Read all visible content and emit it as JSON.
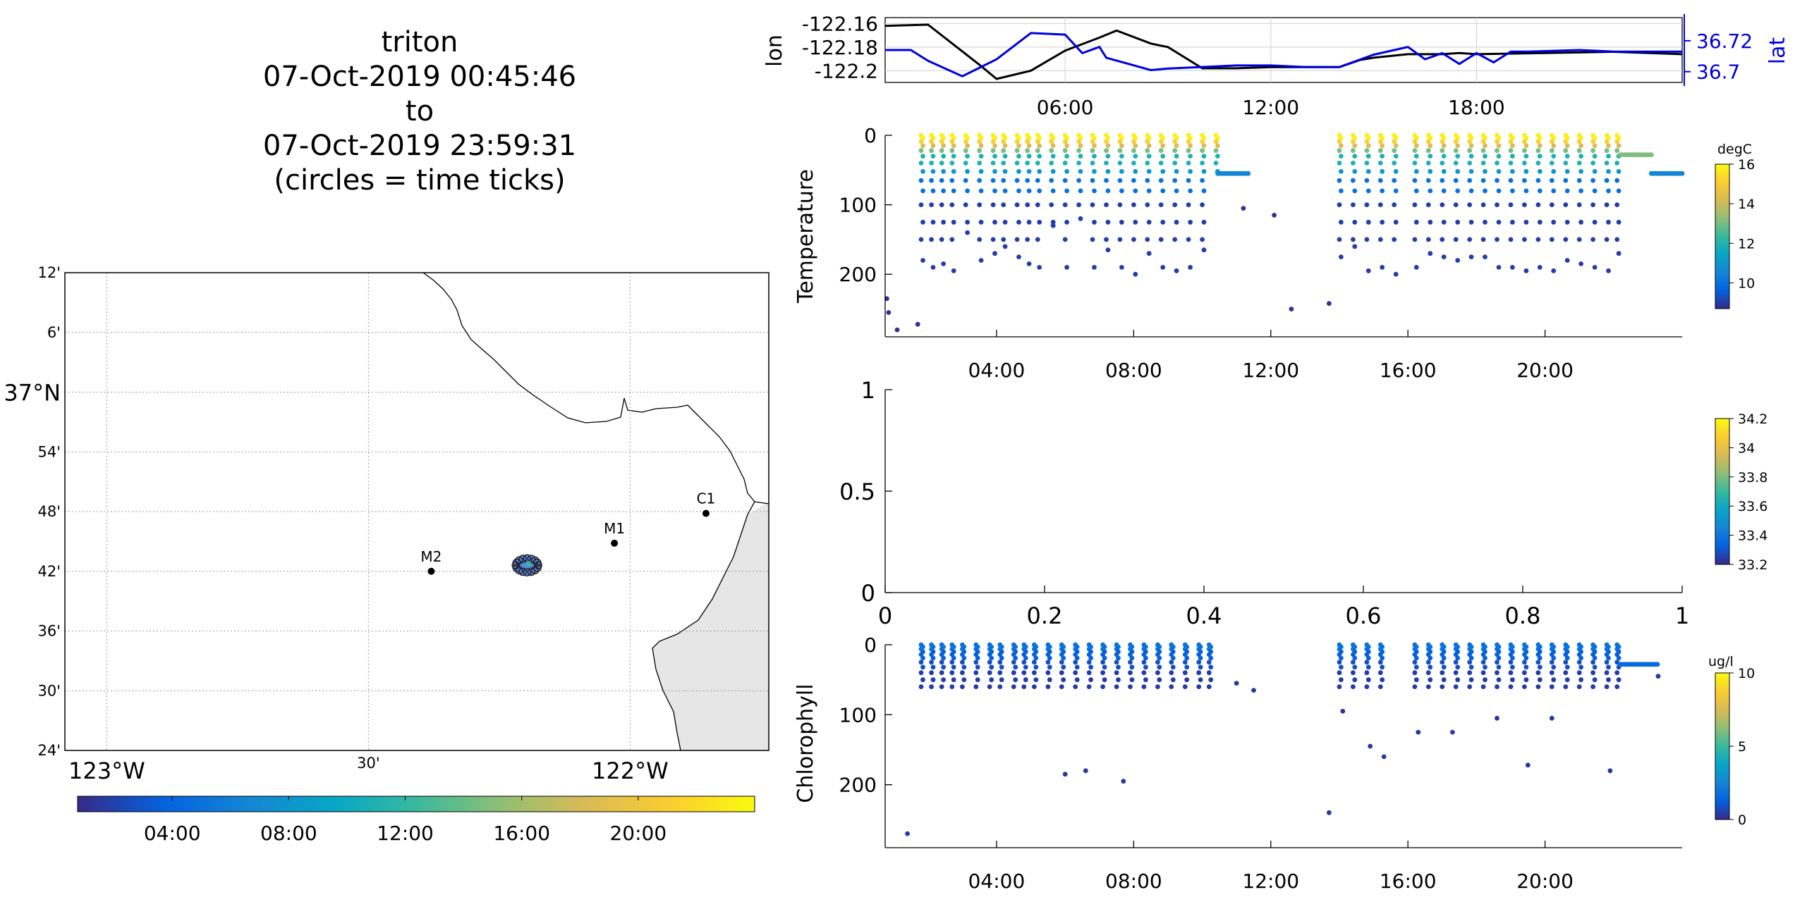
{
  "title": {
    "lines": [
      "triton",
      "07-Oct-2019 00:45:46",
      "to",
      "07-Oct-2019 23:59:31",
      "(circles = time ticks)"
    ]
  },
  "colors": {
    "lon_line": "#000000",
    "lat_line": "#0000dd",
    "land": "#e6e6e6",
    "grid": "#9a9a9a",
    "station": "#000000"
  },
  "map": {
    "lat_ticks": [
      "12'",
      "6'",
      "37°N",
      "54'",
      "48'",
      "42'",
      "36'",
      "30'",
      "24'"
    ],
    "lon_ticks": [
      "123°W",
      "30'",
      "122°W"
    ],
    "stations": [
      {
        "name": "M2",
        "lon": -122.38,
        "lat": 36.7
      },
      {
        "name": "M1",
        "lon": -122.03,
        "lat": 36.747
      },
      {
        "name": "C1",
        "lon": -121.855,
        "lat": 36.797
      }
    ],
    "track_center": {
      "lon": -122.197,
      "lat": 36.71
    },
    "time_colorbar_ticks": [
      "04:00",
      "08:00",
      "12:00",
      "16:00",
      "20:00"
    ]
  },
  "chart_data": [
    {
      "type": "line",
      "ylabel_left": "lon",
      "ylabel_right": "lat",
      "x_ticks": [
        "06:00",
        "12:00",
        "18:00"
      ],
      "xlim_hours": [
        0.75,
        24.0
      ],
      "y_left_ticks": [
        "-122.16",
        "-122.18",
        "-122.2"
      ],
      "y_left_lim": [
        -122.21,
        -122.155
      ],
      "y_right_ticks": [
        "36.72",
        "36.7"
      ],
      "y_right_lim": [
        36.693,
        36.735
      ],
      "series": [
        {
          "name": "lon",
          "axis": "left",
          "x_hours": [
            0.75,
            2.0,
            3.5,
            4.0,
            5.0,
            6.0,
            7.0,
            7.5,
            8.5,
            9.0,
            10.0,
            11.0,
            12.0,
            14.0,
            14.6,
            15.0,
            16.0,
            17.0,
            17.5,
            18.0,
            20.0,
            22.0,
            24.0
          ],
          "values": [
            -122.162,
            -122.161,
            -122.195,
            -122.207,
            -122.2,
            -122.183,
            -122.172,
            -122.166,
            -122.177,
            -122.18,
            -122.198,
            -122.198,
            -122.197,
            -122.197,
            -122.191,
            -122.189,
            -122.186,
            -122.186,
            -122.185,
            -122.186,
            -122.185,
            -122.184,
            -122.186
          ]
        },
        {
          "name": "lat",
          "axis": "right",
          "x_hours": [
            0.75,
            1.5,
            2.0,
            3.0,
            4.0,
            5.0,
            6.0,
            6.5,
            7.0,
            7.2,
            8.5,
            9.0,
            10.0,
            11.0,
            12.0,
            13.0,
            14.0,
            15.0,
            16.0,
            16.5,
            17.0,
            17.5,
            18.0,
            18.5,
            19.0,
            19.5,
            21.0,
            22.0,
            24.0
          ],
          "values": [
            36.714,
            36.714,
            36.707,
            36.697,
            36.708,
            36.725,
            36.724,
            36.712,
            36.716,
            36.709,
            36.701,
            36.702,
            36.703,
            36.704,
            36.704,
            36.703,
            36.703,
            36.711,
            36.716,
            36.708,
            36.712,
            36.705,
            36.712,
            36.706,
            36.713,
            36.713,
            36.714,
            36.713,
            36.713
          ]
        }
      ]
    },
    {
      "type": "scatter",
      "ylabel": "Temperature",
      "colorbar_label": "degC",
      "colorbar_ticks": [
        "16",
        "14",
        "12",
        "10"
      ],
      "clim": [
        8.7,
        16
      ],
      "x_ticks": [
        "04:00",
        "08:00",
        "12:00",
        "16:00",
        "20:00"
      ],
      "xlim_hours": [
        0.75,
        24.0
      ],
      "y_ticks": [
        "0",
        "100",
        "200"
      ],
      "ylim": [
        0,
        290
      ],
      "profile_hours": [
        1.8,
        2.1,
        2.4,
        2.7,
        3.1,
        3.5,
        3.9,
        4.2,
        4.6,
        4.9,
        5.2,
        5.6,
        6.0,
        6.4,
        6.8,
        7.2,
        7.6,
        8.0,
        8.4,
        8.8,
        9.2,
        9.6,
        10.0,
        10.4,
        14.0,
        14.4,
        14.8,
        15.2,
        15.6,
        16.2,
        16.6,
        17.0,
        17.4,
        17.8,
        18.2,
        18.6,
        19.0,
        19.4,
        19.8,
        20.2,
        20.6,
        21.0,
        21.4,
        21.8,
        22.1
      ],
      "profile_max_depth": [
        180,
        190,
        185,
        195,
        140,
        180,
        170,
        160,
        175,
        185,
        190,
        130,
        190,
        120,
        190,
        165,
        190,
        200,
        170,
        190,
        195,
        190,
        165,
        55,
        175,
        160,
        195,
        190,
        200,
        190,
        170,
        175,
        180,
        175,
        175,
        190,
        190,
        195,
        190,
        195,
        180,
        185,
        190,
        195,
        170
      ],
      "extra_points": [
        {
          "x": 0.8,
          "y": 235
        },
        {
          "x": 0.85,
          "y": 255
        },
        {
          "x": 1.1,
          "y": 280
        },
        {
          "x": 1.7,
          "y": 272
        },
        {
          "x": 11.2,
          "y": 105
        },
        {
          "x": 12.1,
          "y": 115
        },
        {
          "x": 12.6,
          "y": 250
        },
        {
          "x": 13.7,
          "y": 242
        }
      ],
      "plateaus": [
        {
          "x0": 10.5,
          "x1": 11.4,
          "depth": 55
        },
        {
          "x0": 22.2,
          "x1": 23.1,
          "depth": 28
        },
        {
          "x0": 23.1,
          "x1": 24.0,
          "depth": 55
        }
      ]
    },
    {
      "type": "scatter",
      "ylabel": "",
      "x_ticks": [
        "0",
        "0.2",
        "0.4",
        "0.6",
        "0.8",
        "1"
      ],
      "y_ticks": [
        "1",
        "0.5",
        "0"
      ],
      "xlim": [
        0,
        1
      ],
      "ylim": [
        0,
        1
      ],
      "colorbar_ticks": [
        "34.2",
        "34",
        "33.8",
        "33.6",
        "33.4",
        "33.2"
      ],
      "clim": [
        33.2,
        34.2
      ],
      "values": []
    },
    {
      "type": "scatter",
      "ylabel": "Chlorophyll",
      "colorbar_label": "ug/l",
      "colorbar_ticks": [
        "10",
        "5",
        "0"
      ],
      "clim": [
        0,
        10
      ],
      "x_ticks": [
        "04:00",
        "08:00",
        "12:00",
        "16:00",
        "20:00"
      ],
      "xlim_hours": [
        0.75,
        24.0
      ],
      "y_ticks": [
        "0",
        "100",
        "200"
      ],
      "ylim": [
        0,
        290
      ],
      "extra_points": [
        {
          "x": 1.4,
          "y": 270
        },
        {
          "x": 6.0,
          "y": 185
        },
        {
          "x": 6.6,
          "y": 180
        },
        {
          "x": 7.7,
          "y": 195
        },
        {
          "x": 13.7,
          "y": 240
        },
        {
          "x": 19.5,
          "y": 172
        },
        {
          "x": 21.9,
          "y": 180
        },
        {
          "x": 14.1,
          "y": 95
        },
        {
          "x": 14.9,
          "y": 145
        },
        {
          "x": 15.3,
          "y": 160
        },
        {
          "x": 16.3,
          "y": 125
        },
        {
          "x": 17.3,
          "y": 125
        },
        {
          "x": 18.6,
          "y": 105
        },
        {
          "x": 20.2,
          "y": 105
        },
        {
          "x": 11.0,
          "y": 55
        },
        {
          "x": 11.5,
          "y": 65
        },
        {
          "x": 23.3,
          "y": 45
        }
      ],
      "plateaus": [
        {
          "x0": 22.2,
          "x1": 23.3,
          "depth": 28
        }
      ]
    }
  ]
}
